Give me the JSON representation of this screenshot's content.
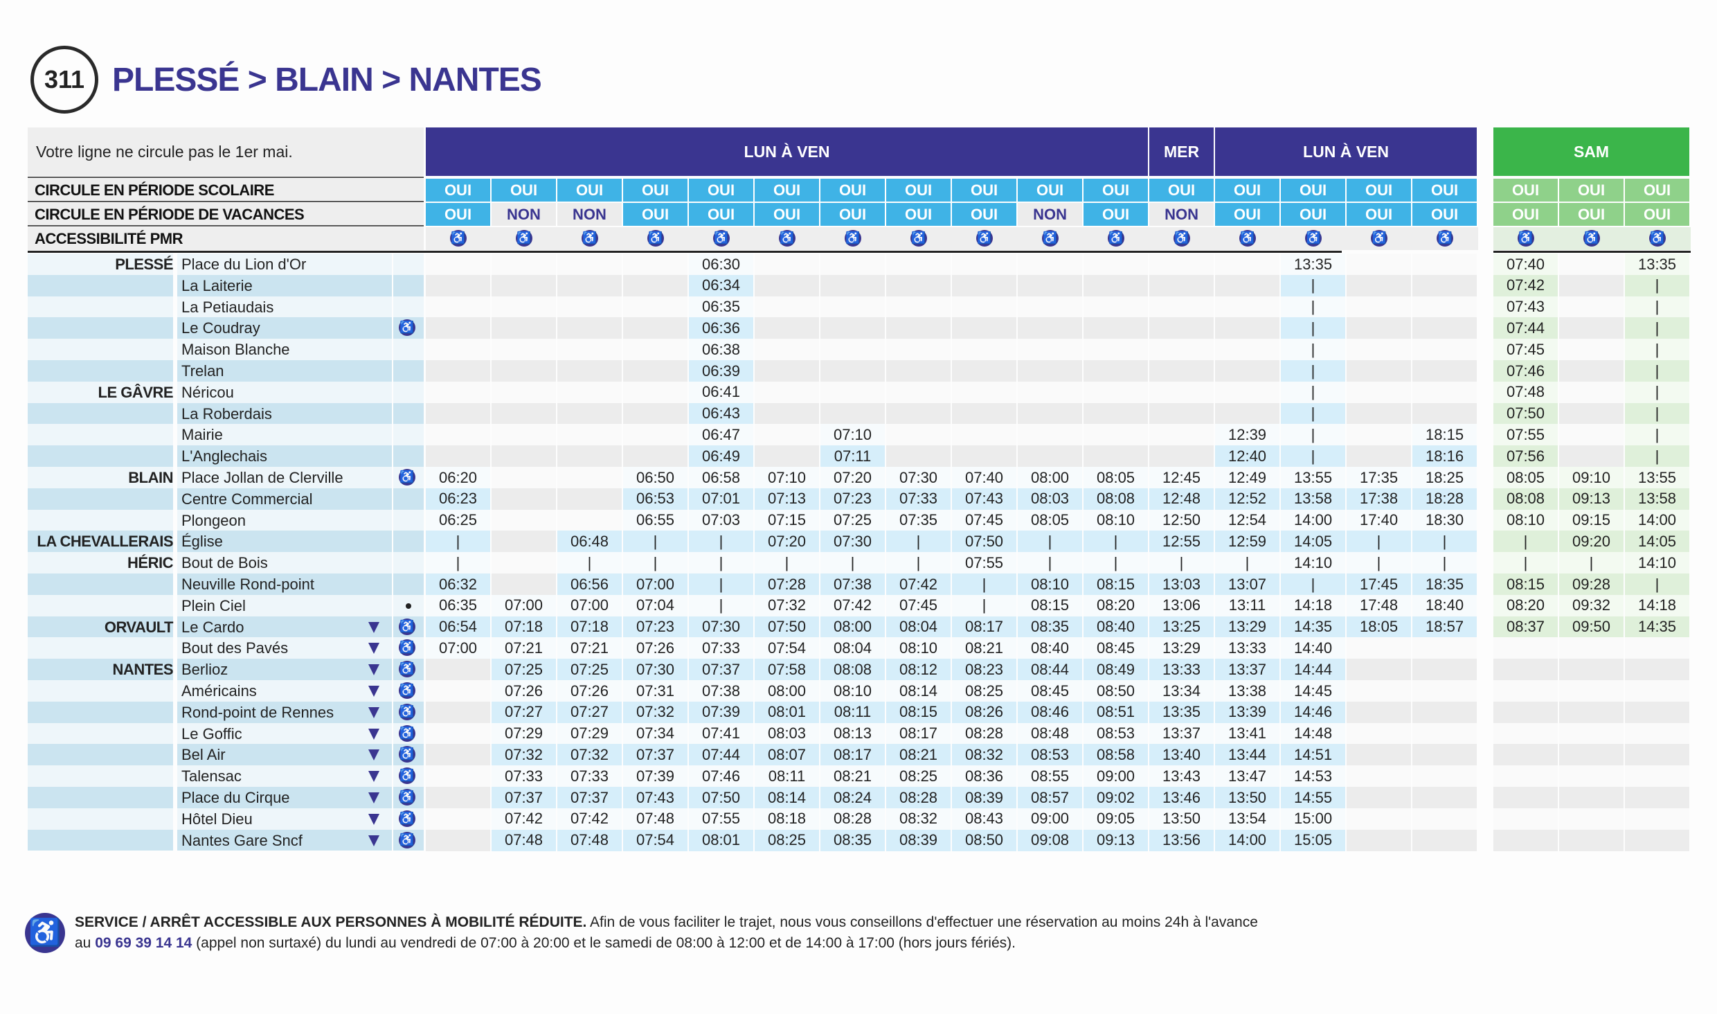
{
  "header": {
    "line_number": "311",
    "title": "PLESSÉ > BLAIN > NANTES"
  },
  "notice": "Votre ligne ne circule pas le 1er mai.",
  "colors": {
    "navy": "#3a3590",
    "light_blue": "#3fb3e6",
    "green": "#3bb54a",
    "light_green": "#8fd18a"
  },
  "day_groups": [
    {
      "label": "LUN À VEN",
      "from": 0,
      "to": 10
    },
    {
      "label": "MER",
      "from": 11,
      "to": 11
    },
    {
      "label": "LUN À VEN",
      "from": 12,
      "to": 15
    },
    {
      "label": "SAM",
      "from": 16,
      "to": 18
    }
  ],
  "row_labels": {
    "scolaire": "CIRCULE EN PÉRIODE SCOLAIRE",
    "vacances": "CIRCULE EN PÉRIODE DE VACANCES",
    "pmr": "ACCESSIBILITÉ PMR"
  },
  "scolaire": [
    "OUI",
    "OUI",
    "OUI",
    "OUI",
    "OUI",
    "OUI",
    "OUI",
    "OUI",
    "OUI",
    "OUI",
    "OUI",
    "OUI",
    "OUI",
    "OUI",
    "OUI",
    "OUI",
    "OUI",
    "OUI",
    "OUI"
  ],
  "vacances": [
    "OUI",
    "NON",
    "NON",
    "OUI",
    "OUI",
    "OUI",
    "OUI",
    "OUI",
    "OUI",
    "NON",
    "OUI",
    "NON",
    "OUI",
    "OUI",
    "OUI",
    "OUI",
    "OUI",
    "OUI",
    "OUI"
  ],
  "stops": [
    {
      "commune": "PLESSÉ",
      "name": "Place du Lion d'Or",
      "tri": false,
      "pmr": false,
      "dot": false,
      "times": [
        "",
        "",
        "",
        "",
        "06:30",
        "",
        "",
        "",
        "",
        "",
        "",
        "",
        "",
        "13:35",
        "",
        "",
        "07:40",
        "",
        "13:35"
      ]
    },
    {
      "commune": "",
      "name": "La Laiterie",
      "tri": false,
      "pmr": false,
      "dot": false,
      "times": [
        "",
        "",
        "",
        "",
        "06:34",
        "",
        "",
        "",
        "",
        "",
        "",
        "",
        "",
        "|",
        "",
        "",
        "07:42",
        "",
        "|"
      ]
    },
    {
      "commune": "",
      "name": "La Petiaudais",
      "tri": false,
      "pmr": false,
      "dot": false,
      "times": [
        "",
        "",
        "",
        "",
        "06:35",
        "",
        "",
        "",
        "",
        "",
        "",
        "",
        "",
        "|",
        "",
        "",
        "07:43",
        "",
        "|"
      ]
    },
    {
      "commune": "",
      "name": "Le Coudray",
      "tri": false,
      "pmr": true,
      "dot": false,
      "times": [
        "",
        "",
        "",
        "",
        "06:36",
        "",
        "",
        "",
        "",
        "",
        "",
        "",
        "",
        "|",
        "",
        "",
        "07:44",
        "",
        "|"
      ]
    },
    {
      "commune": "",
      "name": "Maison Blanche",
      "tri": false,
      "pmr": false,
      "dot": false,
      "times": [
        "",
        "",
        "",
        "",
        "06:38",
        "",
        "",
        "",
        "",
        "",
        "",
        "",
        "",
        "|",
        "",
        "",
        "07:45",
        "",
        "|"
      ]
    },
    {
      "commune": "",
      "name": "Trelan",
      "tri": false,
      "pmr": false,
      "dot": false,
      "times": [
        "",
        "",
        "",
        "",
        "06:39",
        "",
        "",
        "",
        "",
        "",
        "",
        "",
        "",
        "|",
        "",
        "",
        "07:46",
        "",
        "|"
      ]
    },
    {
      "commune": "LE GÂVRE",
      "name": "Néricou",
      "tri": false,
      "pmr": false,
      "dot": false,
      "times": [
        "",
        "",
        "",
        "",
        "06:41",
        "",
        "",
        "",
        "",
        "",
        "",
        "",
        "",
        "|",
        "",
        "",
        "07:48",
        "",
        "|"
      ]
    },
    {
      "commune": "",
      "name": "La Roberdais",
      "tri": false,
      "pmr": false,
      "dot": false,
      "times": [
        "",
        "",
        "",
        "",
        "06:43",
        "",
        "",
        "",
        "",
        "",
        "",
        "",
        "",
        "|",
        "",
        "",
        "07:50",
        "",
        "|"
      ]
    },
    {
      "commune": "",
      "name": "Mairie",
      "tri": false,
      "pmr": false,
      "dot": false,
      "times": [
        "",
        "",
        "",
        "",
        "06:47",
        "",
        "07:10",
        "",
        "",
        "",
        "",
        "",
        "12:39",
        "|",
        "",
        "18:15",
        "07:55",
        "",
        "|"
      ]
    },
    {
      "commune": "",
      "name": "L'Anglechais",
      "tri": false,
      "pmr": false,
      "dot": false,
      "times": [
        "",
        "",
        "",
        "",
        "06:49",
        "",
        "07:11",
        "",
        "",
        "",
        "",
        "",
        "12:40",
        "|",
        "",
        "18:16",
        "07:56",
        "",
        "|"
      ]
    },
    {
      "commune": "BLAIN",
      "name": "Place Jollan de Clerville",
      "tri": false,
      "pmr": true,
      "dot": false,
      "times": [
        "06:20",
        "",
        "",
        "06:50",
        "06:58",
        "07:10",
        "07:20",
        "07:30",
        "07:40",
        "08:00",
        "08:05",
        "12:45",
        "12:49",
        "13:55",
        "17:35",
        "18:25",
        "08:05",
        "09:10",
        "13:55"
      ]
    },
    {
      "commune": "",
      "name": "Centre Commercial",
      "tri": false,
      "pmr": false,
      "dot": false,
      "times": [
        "06:23",
        "",
        "",
        "06:53",
        "07:01",
        "07:13",
        "07:23",
        "07:33",
        "07:43",
        "08:03",
        "08:08",
        "12:48",
        "12:52",
        "13:58",
        "17:38",
        "18:28",
        "08:08",
        "09:13",
        "13:58"
      ]
    },
    {
      "commune": "",
      "name": "Plongeon",
      "tri": false,
      "pmr": false,
      "dot": false,
      "times": [
        "06:25",
        "",
        "",
        "06:55",
        "07:03",
        "07:15",
        "07:25",
        "07:35",
        "07:45",
        "08:05",
        "08:10",
        "12:50",
        "12:54",
        "14:00",
        "17:40",
        "18:30",
        "08:10",
        "09:15",
        "14:00"
      ]
    },
    {
      "commune": "LA CHEVALLERAIS",
      "name": "Église",
      "tri": false,
      "pmr": false,
      "dot": false,
      "times": [
        "|",
        "",
        "06:48",
        "|",
        "|",
        "07:20",
        "07:30",
        "|",
        "07:50",
        "|",
        "|",
        "12:55",
        "12:59",
        "14:05",
        "|",
        "|",
        "|",
        "09:20",
        "14:05"
      ]
    },
    {
      "commune": "HÉRIC",
      "name": "Bout de Bois",
      "tri": false,
      "pmr": false,
      "dot": false,
      "times": [
        "|",
        "",
        "|",
        "|",
        "|",
        "|",
        "|",
        "|",
        "07:55",
        "|",
        "|",
        "|",
        "|",
        "14:10",
        "|",
        "|",
        "|",
        "|",
        "14:10"
      ]
    },
    {
      "commune": "",
      "name": "Neuville Rond-point",
      "tri": false,
      "pmr": false,
      "dot": false,
      "times": [
        "06:32",
        "",
        "06:56",
        "07:00",
        "|",
        "07:28",
        "07:38",
        "07:42",
        "|",
        "08:10",
        "08:15",
        "13:03",
        "13:07",
        "|",
        "17:45",
        "18:35",
        "08:15",
        "09:28",
        "|"
      ]
    },
    {
      "commune": "",
      "name": "Plein Ciel",
      "tri": false,
      "pmr": false,
      "dot": true,
      "times": [
        "06:35",
        "07:00",
        "07:00",
        "07:04",
        "|",
        "07:32",
        "07:42",
        "07:45",
        "|",
        "08:15",
        "08:20",
        "13:06",
        "13:11",
        "14:18",
        "17:48",
        "18:40",
        "08:20",
        "09:32",
        "14:18"
      ]
    },
    {
      "commune": "ORVAULT",
      "name": "Le Cardo",
      "tri": true,
      "pmr": true,
      "dot": false,
      "times": [
        "06:54",
        "07:18",
        "07:18",
        "07:23",
        "07:30",
        "07:50",
        "08:00",
        "08:04",
        "08:17",
        "08:35",
        "08:40",
        "13:25",
        "13:29",
        "14:35",
        "18:05",
        "18:57",
        "08:37",
        "09:50",
        "14:35"
      ]
    },
    {
      "commune": "",
      "name": "Bout des Pavés",
      "tri": true,
      "pmr": true,
      "dot": false,
      "times": [
        "07:00",
        "07:21",
        "07:21",
        "07:26",
        "07:33",
        "07:54",
        "08:04",
        "08:10",
        "08:21",
        "08:40",
        "08:45",
        "13:29",
        "13:33",
        "14:40",
        "",
        "",
        "",
        "",
        ""
      ]
    },
    {
      "commune": "NANTES",
      "name": "Berlioz",
      "tri": true,
      "pmr": true,
      "dot": false,
      "times": [
        "",
        "07:25",
        "07:25",
        "07:30",
        "07:37",
        "07:58",
        "08:08",
        "08:12",
        "08:23",
        "08:44",
        "08:49",
        "13:33",
        "13:37",
        "14:44",
        "",
        "",
        "",
        "",
        ""
      ]
    },
    {
      "commune": "",
      "name": "Américains",
      "tri": true,
      "pmr": true,
      "dot": false,
      "times": [
        "",
        "07:26",
        "07:26",
        "07:31",
        "07:38",
        "08:00",
        "08:10",
        "08:14",
        "08:25",
        "08:45",
        "08:50",
        "13:34",
        "13:38",
        "14:45",
        "",
        "",
        "",
        "",
        ""
      ]
    },
    {
      "commune": "",
      "name": "Rond-point de Rennes",
      "tri": true,
      "pmr": true,
      "dot": false,
      "times": [
        "",
        "07:27",
        "07:27",
        "07:32",
        "07:39",
        "08:01",
        "08:11",
        "08:15",
        "08:26",
        "08:46",
        "08:51",
        "13:35",
        "13:39",
        "14:46",
        "",
        "",
        "",
        "",
        ""
      ]
    },
    {
      "commune": "",
      "name": "Le Goffic",
      "tri": true,
      "pmr": true,
      "dot": false,
      "times": [
        "",
        "07:29",
        "07:29",
        "07:34",
        "07:41",
        "08:03",
        "08:13",
        "08:17",
        "08:28",
        "08:48",
        "08:53",
        "13:37",
        "13:41",
        "14:48",
        "",
        "",
        "",
        "",
        ""
      ]
    },
    {
      "commune": "",
      "name": "Bel Air",
      "tri": true,
      "pmr": true,
      "dot": false,
      "times": [
        "",
        "07:32",
        "07:32",
        "07:37",
        "07:44",
        "08:07",
        "08:17",
        "08:21",
        "08:32",
        "08:53",
        "08:58",
        "13:40",
        "13:44",
        "14:51",
        "",
        "",
        "",
        "",
        ""
      ]
    },
    {
      "commune": "",
      "name": "Talensac",
      "tri": true,
      "pmr": true,
      "dot": false,
      "times": [
        "",
        "07:33",
        "07:33",
        "07:39",
        "07:46",
        "08:11",
        "08:21",
        "08:25",
        "08:36",
        "08:55",
        "09:00",
        "13:43",
        "13:47",
        "14:53",
        "",
        "",
        "",
        "",
        ""
      ]
    },
    {
      "commune": "",
      "name": "Place du Cirque",
      "tri": true,
      "pmr": true,
      "dot": false,
      "times": [
        "",
        "07:37",
        "07:37",
        "07:43",
        "07:50",
        "08:14",
        "08:24",
        "08:28",
        "08:39",
        "08:57",
        "09:02",
        "13:46",
        "13:50",
        "14:55",
        "",
        "",
        "",
        "",
        ""
      ]
    },
    {
      "commune": "",
      "name": "Hôtel Dieu",
      "tri": true,
      "pmr": true,
      "dot": false,
      "times": [
        "",
        "07:42",
        "07:42",
        "07:48",
        "07:55",
        "08:18",
        "08:28",
        "08:32",
        "08:43",
        "09:00",
        "09:05",
        "13:50",
        "13:54",
        "15:00",
        "",
        "",
        "",
        "",
        ""
      ]
    },
    {
      "commune": "",
      "name": "Nantes Gare Sncf",
      "tri": true,
      "pmr": true,
      "dot": false,
      "times": [
        "",
        "07:48",
        "07:48",
        "07:54",
        "08:01",
        "08:25",
        "08:35",
        "08:39",
        "08:50",
        "09:08",
        "09:13",
        "13:56",
        "14:00",
        "15:05",
        "",
        "",
        "",
        "",
        ""
      ]
    }
  ],
  "footer": {
    "bold": "SERVICE / ARRÊT ACCESSIBLE AUX PERSONNES À MOBILITÉ RÉDUITE.",
    "text1": " Afin de vous faciliter le trajet, nous vous conseillons d'effectuer une réservation au moins 24h à l'avance",
    "prefix": "au ",
    "phone": "09 69 39 14 14",
    "text2": " (appel non surtaxé) du lundi au vendredi de 07:00 à 20:00 et le samedi de 08:00 à 12:00 et de 14:00 à 17:00 (hors jours fériés)."
  }
}
